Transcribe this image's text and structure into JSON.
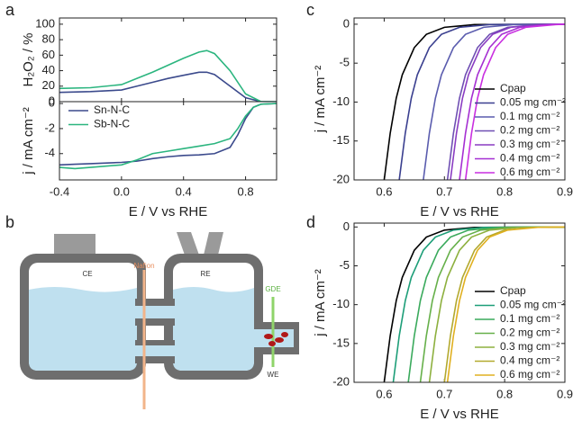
{
  "panel_labels": [
    "a",
    "b",
    "c",
    "d"
  ],
  "diagram": {
    "labels": [
      "CE",
      "Nafion",
      "RE",
      "GDE",
      "WE"
    ]
  },
  "chart_data": [
    {
      "type": "line",
      "ylabel": "H₂O₂ / %",
      "x": [
        -0.4,
        -0.2,
        0,
        0.1,
        0.2,
        0.3,
        0.4,
        0.5,
        0.55,
        0.6,
        0.7,
        0.8,
        0.9,
        1.0
      ],
      "xlim": [
        -0.4,
        1.0
      ],
      "xticks": [
        -0.4,
        0,
        0.4,
        0.8
      ],
      "ylim": [
        0,
        108
      ],
      "yticks": [
        0,
        20,
        40,
        60,
        80,
        100
      ],
      "series": [
        {
          "color": "#3b4a8c",
          "values": [
            12,
            13,
            15,
            20,
            25,
            30,
            34,
            38,
            38,
            35,
            20,
            5,
            0,
            0
          ]
        },
        {
          "color": "#2bb57f",
          "values": [
            17,
            18,
            22,
            30,
            38,
            47,
            56,
            64,
            66,
            62,
            40,
            10,
            0,
            0
          ]
        }
      ]
    },
    {
      "type": "line",
      "ylabel": "j / mA cm⁻²",
      "xlabel": "E / V vs RHE",
      "x": [
        -0.4,
        -0.3,
        -0.2,
        0,
        0.1,
        0.2,
        0.3,
        0.4,
        0.5,
        0.6,
        0.7,
        0.75,
        0.8,
        0.85,
        0.9,
        1.0
      ],
      "xlim": [
        -0.4,
        1.0
      ],
      "xticks": [
        -0.4,
        {
          "value": 0,
          "label": "0.0"
        },
        0.4,
        0.8
      ],
      "ylim": [
        -6.1,
        0.15
      ],
      "yticks": [
        -4,
        -2,
        0
      ],
      "legend": "upper left",
      "series": [
        {
          "name": "Sn-N-C",
          "color": "#3b4a8c",
          "values": [
            -4.9,
            -4.85,
            -4.8,
            -4.7,
            -4.6,
            -4.4,
            -4.25,
            -4.15,
            -4.1,
            -4.0,
            -3.5,
            -2.5,
            -1.2,
            -0.3,
            -0.05,
            0
          ]
        },
        {
          "name": "Sb-N-C",
          "color": "#2bb57f",
          "values": [
            -5.1,
            -5.2,
            -5.1,
            -4.9,
            -4.5,
            -4.0,
            -3.8,
            -3.6,
            -3.4,
            -3.2,
            -2.8,
            -2.0,
            -1.0,
            -0.3,
            -0.05,
            0
          ]
        }
      ]
    },
    {
      "type": "line",
      "ylabel": "j / mA cm⁻²",
      "xlabel": "E / V vs RHE",
      "xlim": [
        0.55,
        0.9
      ],
      "xticks": [
        0.6,
        0.7,
        0.8,
        0.9
      ],
      "ylim": [
        -20,
        0.8
      ],
      "yticks": [
        0,
        -5,
        -10,
        -15,
        -20
      ],
      "legend": "lower right",
      "series": [
        {
          "name": "Cpap",
          "color": "#000000",
          "x": [
            0.6,
            0.61,
            0.62,
            0.63,
            0.65,
            0.67,
            0.7,
            0.75,
            0.9
          ],
          "values": [
            -20,
            -14,
            -9.5,
            -6.5,
            -3,
            -1.3,
            -0.4,
            -0.05,
            0
          ]
        },
        {
          "name": "0.05 mg cm⁻²",
          "color": "#3a3f8f",
          "x": [
            0.625,
            0.635,
            0.645,
            0.655,
            0.675,
            0.695,
            0.725,
            0.775,
            0.9
          ],
          "values": [
            -20,
            -14,
            -9.5,
            -6.5,
            -3,
            -1.3,
            -0.4,
            -0.05,
            0
          ]
        },
        {
          "name": "0.1 mg cm⁻²",
          "color": "#5a5cae",
          "x": [
            0.665,
            0.675,
            0.685,
            0.695,
            0.715,
            0.735,
            0.765,
            0.815,
            0.9
          ],
          "values": [
            -20,
            -14,
            -9.5,
            -6.5,
            -3,
            -1.3,
            -0.4,
            -0.05,
            0
          ]
        },
        {
          "name": "0.2 mg cm⁻²",
          "color": "#6f4fb3",
          "x": [
            0.705,
            0.715,
            0.725,
            0.735,
            0.755,
            0.775,
            0.805,
            0.855,
            0.9
          ],
          "values": [
            -20,
            -14,
            -9.5,
            -6.5,
            -3,
            -1.3,
            -0.4,
            -0.05,
            0
          ]
        },
        {
          "name": "0.3 mg cm⁻²",
          "color": "#8a3cc2",
          "x": [
            0.71,
            0.72,
            0.73,
            0.74,
            0.76,
            0.78,
            0.81,
            0.86,
            0.9
          ],
          "values": [
            -20,
            -14,
            -9.5,
            -6.5,
            -3,
            -1.3,
            -0.4,
            -0.05,
            0
          ]
        },
        {
          "name": "0.4 mg cm⁻²",
          "color": "#a52fd2",
          "x": [
            0.725,
            0.735,
            0.745,
            0.755,
            0.775,
            0.795,
            0.825,
            0.875,
            0.9
          ],
          "values": [
            -20,
            -14,
            -9.5,
            -6.5,
            -3,
            -1.3,
            -0.4,
            -0.05,
            0
          ]
        },
        {
          "name": "0.6 mg cm⁻²",
          "color": "#c92fe0",
          "x": [
            0.735,
            0.745,
            0.755,
            0.765,
            0.785,
            0.805,
            0.835,
            0.885,
            0.9
          ],
          "values": [
            -20,
            -14,
            -9.5,
            -6.5,
            -3,
            -1.3,
            -0.4,
            -0.05,
            0
          ]
        }
      ]
    },
    {
      "type": "line",
      "ylabel": "j / mA cm⁻²",
      "xlabel": "E / V vs RHE",
      "xlim": [
        0.55,
        0.9
      ],
      "xticks": [
        0.6,
        0.7,
        0.8,
        0.9
      ],
      "ylim": [
        -20,
        0.5
      ],
      "yticks": [
        0,
        -5,
        -10,
        -15,
        -20
      ],
      "legend": "lower right",
      "series": [
        {
          "name": "Cpap",
          "color": "#000000",
          "x": [
            0.6,
            0.61,
            0.62,
            0.63,
            0.65,
            0.67,
            0.7,
            0.75,
            0.9
          ],
          "values": [
            -20,
            -14,
            -9.5,
            -6.5,
            -3,
            -1.3,
            -0.4,
            -0.05,
            0
          ]
        },
        {
          "name": "0.05 mg cm⁻²",
          "color": "#1d9e78",
          "x": [
            0.615,
            0.625,
            0.635,
            0.645,
            0.665,
            0.685,
            0.715,
            0.765,
            0.9
          ],
          "values": [
            -20,
            -14,
            -9.5,
            -6.5,
            -3,
            -1.3,
            -0.4,
            -0.05,
            0
          ]
        },
        {
          "name": "0.1 mg cm⁻²",
          "color": "#3aaa5c",
          "x": [
            0.64,
            0.65,
            0.66,
            0.67,
            0.69,
            0.71,
            0.74,
            0.79,
            0.9
          ],
          "values": [
            -20,
            -14,
            -9.5,
            -6.5,
            -3,
            -1.3,
            -0.4,
            -0.05,
            0
          ]
        },
        {
          "name": "0.2 mg cm⁻²",
          "color": "#66b04a",
          "x": [
            0.66,
            0.67,
            0.68,
            0.69,
            0.71,
            0.73,
            0.76,
            0.81,
            0.9
          ],
          "values": [
            -20,
            -14,
            -9.5,
            -6.5,
            -3,
            -1.3,
            -0.4,
            -0.05,
            0
          ]
        },
        {
          "name": "0.3 mg cm⁻²",
          "color": "#8db03e",
          "x": [
            0.675,
            0.685,
            0.695,
            0.705,
            0.725,
            0.745,
            0.775,
            0.825,
            0.9
          ],
          "values": [
            -20,
            -14,
            -9.5,
            -6.5,
            -3,
            -1.3,
            -0.4,
            -0.05,
            0
          ]
        },
        {
          "name": "0.4 mg cm⁻²",
          "color": "#b3a92e",
          "x": [
            0.7,
            0.71,
            0.72,
            0.73,
            0.75,
            0.77,
            0.8,
            0.85,
            0.9
          ],
          "values": [
            -20,
            -14,
            -9.5,
            -6.5,
            -3,
            -1.3,
            -0.4,
            -0.05,
            0
          ]
        },
        {
          "name": "0.6 mg cm⁻²",
          "color": "#e0b020",
          "x": [
            0.705,
            0.715,
            0.725,
            0.735,
            0.755,
            0.775,
            0.805,
            0.855,
            0.9
          ],
          "values": [
            -20,
            -14,
            -9.5,
            -6.5,
            -3,
            -1.3,
            -0.4,
            -0.05,
            0
          ]
        }
      ]
    }
  ]
}
